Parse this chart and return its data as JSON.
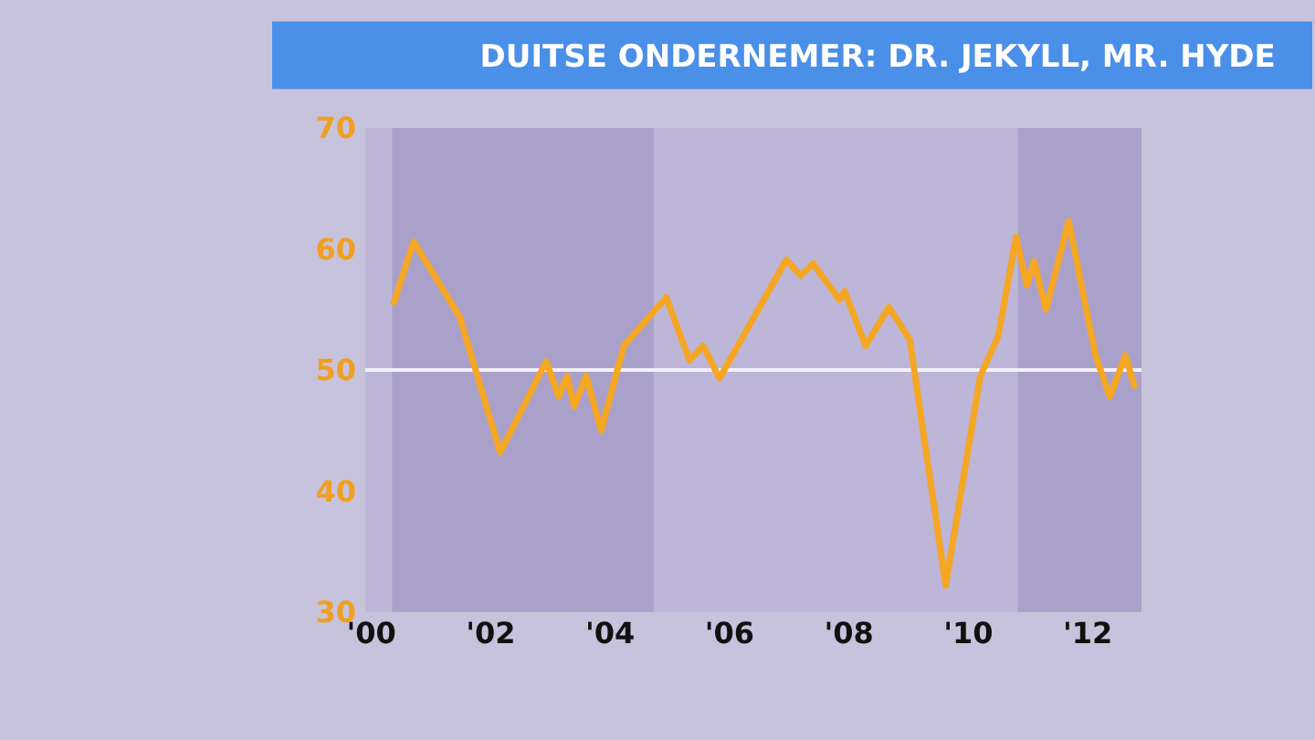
{
  "chart_data": {
    "type": "line",
    "title": "DUITSE ONDERNEMER: DR. JEKYLL, MR. HYDE",
    "x": [
      2000.38,
      2000.71,
      2001.48,
      2002.16,
      2002.93,
      2003.14,
      2003.28,
      2003.4,
      2003.6,
      2003.85,
      2004.23,
      2004.94,
      2005.33,
      2005.56,
      2005.83,
      2006.95,
      2007.19,
      2007.4,
      2007.84,
      2007.93,
      2008.28,
      2008.67,
      2009.02,
      2009.62,
      2010.2,
      2010.5,
      2010.8,
      2010.98,
      2011.1,
      2011.3,
      2011.68,
      2012.13,
      2012.37,
      2012.63,
      2012.78
    ],
    "series": [
      {
        "color": "#f5a623",
        "values": [
          55.6,
          60.6,
          54.4,
          43.2,
          50.7,
          47.8,
          49.5,
          47,
          49.5,
          45,
          52,
          56,
          50.8,
          52,
          49.3,
          59.1,
          57.8,
          58.8,
          55.8,
          56.5,
          52,
          55.2,
          52.5,
          32.2,
          49.5,
          52.8,
          61,
          57,
          59,
          55,
          62.3,
          51.2,
          47.8,
          51.2,
          48.7
        ]
      }
    ],
    "xlim": [
      1999.9,
      2012.9
    ],
    "xticks": [
      {
        "value": 2000,
        "label": "'00"
      },
      {
        "value": 2002,
        "label": "'02"
      },
      {
        "value": 2004,
        "label": "'04"
      },
      {
        "value": 2006,
        "label": "'06"
      },
      {
        "value": 2008,
        "label": "'08"
      },
      {
        "value": 2010,
        "label": "'10"
      },
      {
        "value": 2012,
        "label": "'12"
      }
    ],
    "ylim": [
      30,
      70
    ],
    "yticks": [
      30,
      40,
      50,
      60,
      70
    ],
    "ref_lines": [
      {
        "axis": "y",
        "value": 50,
        "color": "#f2f0fa"
      }
    ],
    "bands": [
      {
        "axis": "x",
        "from": 2000.35,
        "to": 2004.73,
        "color": "#9a8fc0"
      },
      {
        "axis": "x",
        "from": 2010.83,
        "to": 2012.9,
        "color": "#9a8fc0"
      }
    ],
    "grid": false,
    "marker": "none",
    "line_style": "solid"
  }
}
